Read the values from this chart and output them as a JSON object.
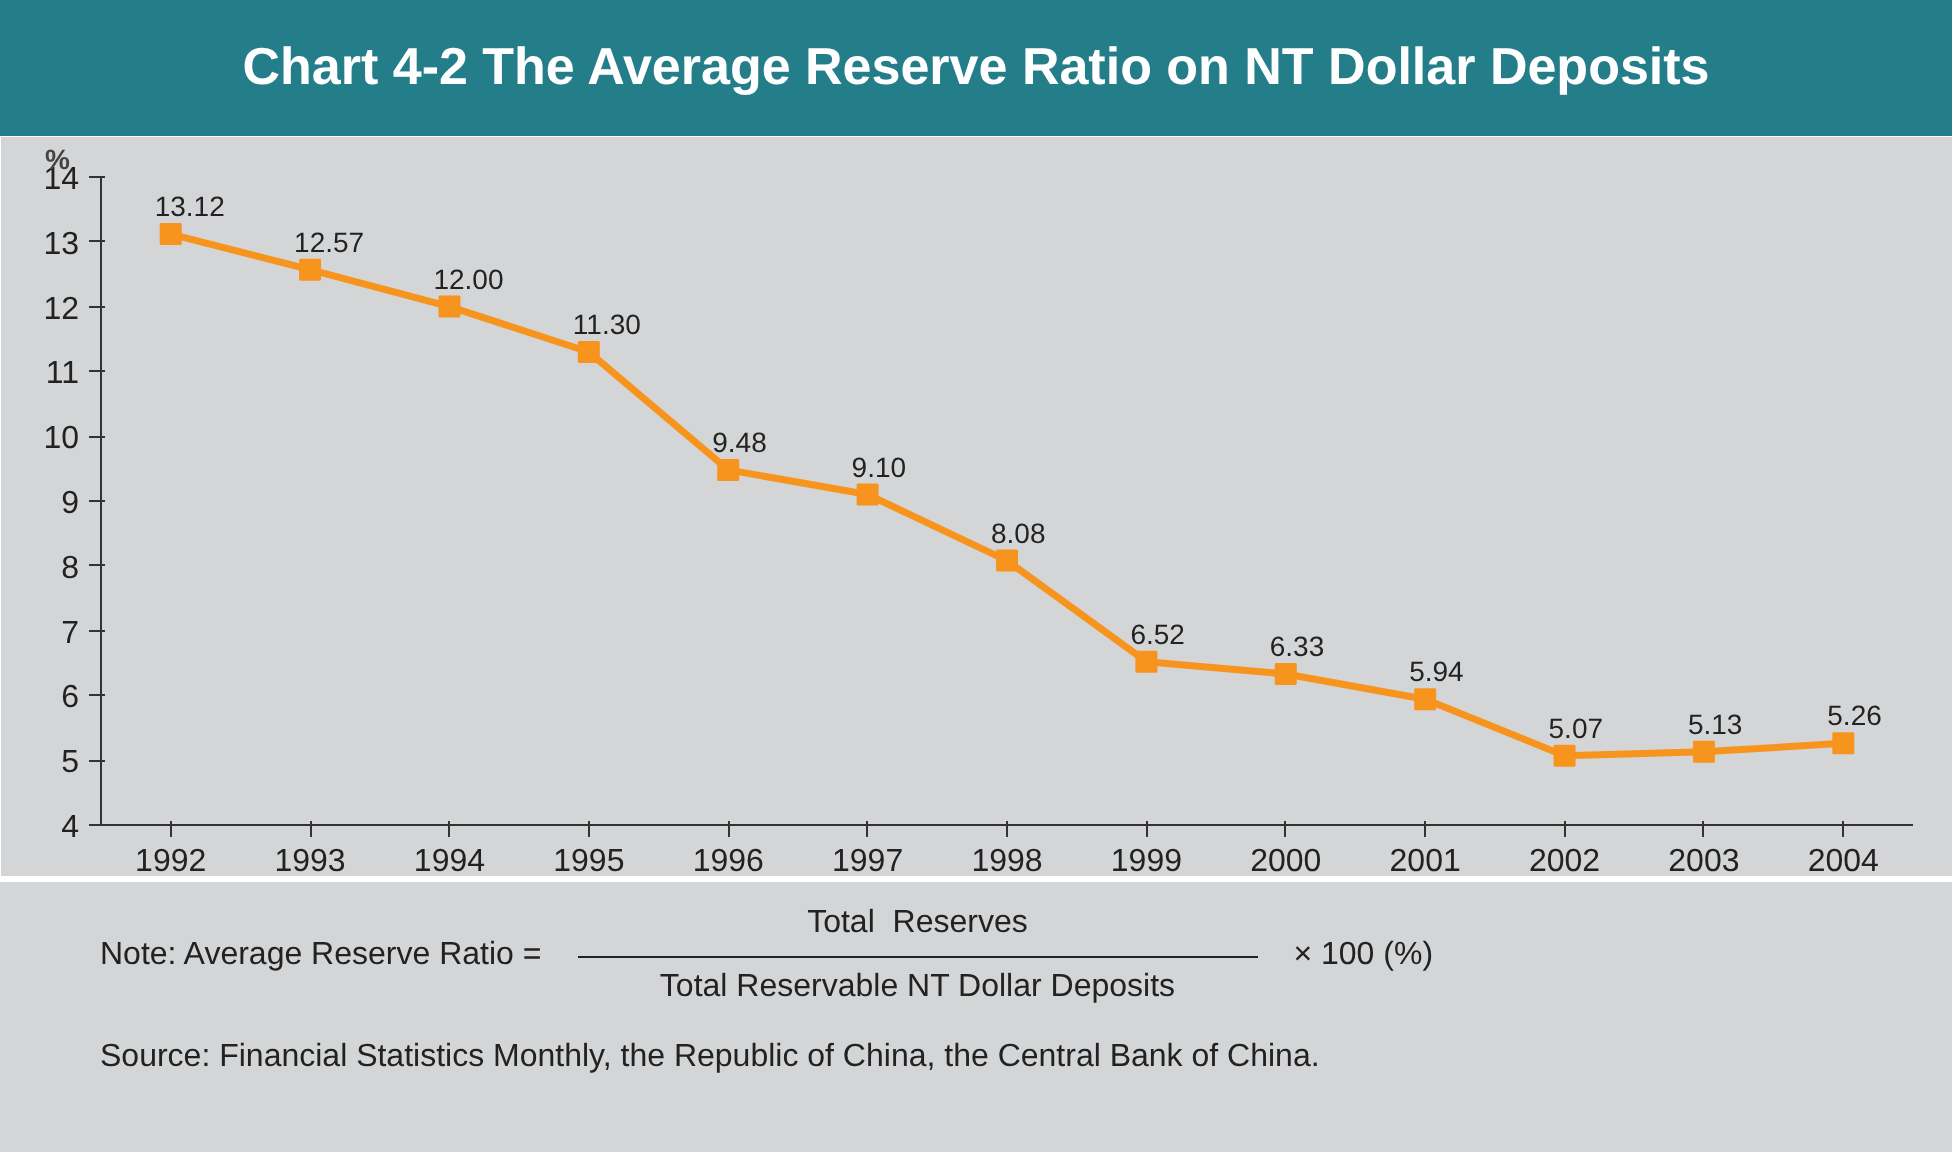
{
  "chart_data": {
    "type": "line",
    "title": "Chart 4-2 The Average Reserve Ratio on NT Dollar Deposits",
    "ylabel": "%",
    "categories": [
      "1992",
      "1993",
      "1994",
      "1995",
      "1996",
      "1997",
      "1998",
      "1999",
      "2000",
      "2001",
      "2002",
      "2003",
      "2004"
    ],
    "series": [
      {
        "color": "#f7941d",
        "values": [
          13.12,
          12.57,
          12.0,
          11.3,
          9.48,
          9.1,
          8.08,
          6.52,
          6.33,
          5.94,
          5.07,
          5.13,
          5.26
        ],
        "value_labels": [
          "13.12",
          "12.57",
          "12.00",
          "11.30",
          "9.48",
          "9.10",
          "8.08",
          "6.52",
          "6.33",
          "5.94",
          "5.07",
          "5.13",
          "5.26"
        ]
      }
    ],
    "ylim": [
      4,
      14
    ],
    "yticks": [
      4,
      5,
      6,
      7,
      8,
      9,
      10,
      11,
      12,
      13,
      14
    ],
    "grid": false,
    "marker": "square",
    "line_style": "solid",
    "annotations": [
      "Note: Average Reserve Ratio =",
      "Total  Reserves",
      "Total Reservable NT Dollar Deposits",
      "× 100 (%)",
      "Source: Financial Statistics Monthly, the Republic of China, the Central Bank of China."
    ]
  }
}
